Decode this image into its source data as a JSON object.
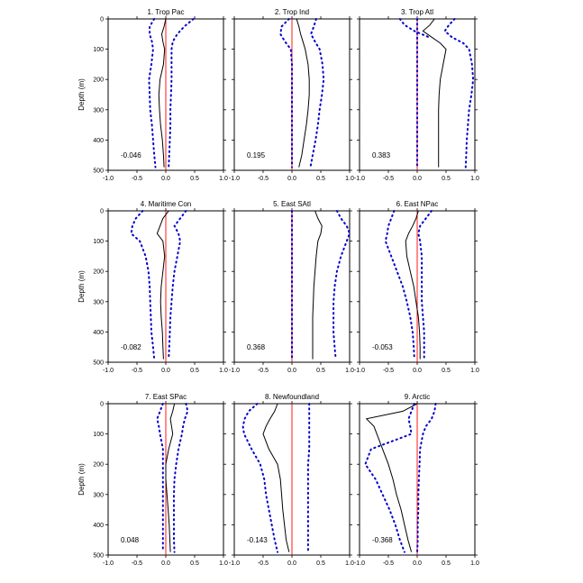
{
  "colors": {
    "mean": "#000000",
    "bounds": "#0000cc",
    "zero": "#ff0000",
    "axis": "#000000"
  },
  "shared_axes": {
    "ylabel": "Depth (m)",
    "xlim": [
      -1.0,
      1.0
    ],
    "ylim": [
      0,
      500
    ],
    "xticks": [
      "-1.0",
      "-0.5",
      "0.0",
      "0.5",
      "1.0"
    ],
    "yticks": [
      "0",
      "100",
      "200",
      "300",
      "400",
      "500"
    ]
  },
  "chart_data": [
    {
      "type": "line",
      "title": "1. Trop Pac",
      "value_label": "-0.046",
      "xlim": [
        -1,
        1
      ],
      "ylim": [
        0,
        500
      ],
      "grid": false,
      "depth": [
        0,
        25,
        50,
        75,
        100,
        150,
        200,
        250,
        300,
        350,
        400,
        450,
        490
      ],
      "series": [
        {
          "role": "mean",
          "values": [
            0.0,
            -0.03,
            -0.07,
            -0.05,
            -0.02,
            -0.04,
            -0.1,
            -0.12,
            -0.11,
            -0.09,
            -0.06,
            -0.04,
            -0.03
          ]
        },
        {
          "role": "lower",
          "values": [
            -0.2,
            -0.28,
            -0.28,
            -0.24,
            -0.22,
            -0.25,
            -0.29,
            -0.28,
            -0.27,
            -0.24,
            -0.22,
            -0.2,
            -0.18
          ]
        },
        {
          "role": "upper",
          "values": [
            0.48,
            0.32,
            0.2,
            0.12,
            0.1,
            0.1,
            0.1,
            0.09,
            0.08,
            0.08,
            0.07,
            0.06,
            0.05
          ]
        }
      ]
    },
    {
      "type": "line",
      "title": "2. Trop Ind",
      "value_label": "0.195",
      "xlim": [
        -1,
        1
      ],
      "ylim": [
        0,
        500
      ],
      "grid": false,
      "depth": [
        0,
        25,
        50,
        75,
        100,
        150,
        200,
        250,
        300,
        350,
        400,
        450,
        490
      ],
      "series": [
        {
          "role": "mean",
          "values": [
            0.08,
            0.12,
            0.15,
            0.19,
            0.23,
            0.28,
            0.3,
            0.3,
            0.28,
            0.25,
            0.21,
            0.17,
            0.12
          ]
        },
        {
          "role": "lower",
          "values": [
            -0.05,
            -0.18,
            -0.2,
            -0.12,
            -0.02,
            0.0,
            0.0,
            0.0,
            0.0,
            0.0,
            0.0,
            0.0,
            0.0
          ]
        },
        {
          "role": "upper",
          "values": [
            0.42,
            0.38,
            0.33,
            0.4,
            0.48,
            0.53,
            0.55,
            0.52,
            0.48,
            0.45,
            0.41,
            0.36,
            0.32
          ]
        }
      ]
    },
    {
      "type": "line",
      "title": "3. Trop Atl",
      "value_label": "0.383",
      "xlim": [
        -1,
        1
      ],
      "ylim": [
        0,
        500
      ],
      "grid": false,
      "depth": [
        0,
        20,
        40,
        60,
        80,
        100,
        150,
        200,
        250,
        300,
        350,
        400,
        450,
        490
      ],
      "series": [
        {
          "role": "mean",
          "values": [
            0.3,
            0.22,
            0.1,
            0.25,
            0.4,
            0.5,
            0.45,
            0.4,
            0.38,
            0.37,
            0.37,
            0.37,
            0.37,
            0.37
          ]
        },
        {
          "role": "lower",
          "values": [
            0.0,
            0.0,
            0.0,
            0.0,
            0.0,
            0.0,
            0.0,
            0.0,
            0.0,
            0.0,
            0.0,
            0.0,
            0.0,
            0.0
          ]
        },
        {
          "role": "upper",
          "values": [
            0.65,
            0.55,
            0.48,
            0.6,
            0.8,
            0.9,
            0.95,
            0.97,
            0.94,
            0.9,
            0.88,
            0.86,
            0.85,
            0.84
          ]
        },
        {
          "role": "lower_extra",
          "values": [
            -0.3,
            -0.22,
            -0.05,
            0.2,
            null,
            null,
            null,
            null,
            null,
            null,
            null,
            null,
            null,
            null
          ]
        }
      ]
    },
    {
      "type": "line",
      "title": "4. Maritime Con",
      "value_label": "-0.082",
      "xlim": [
        -1,
        1
      ],
      "ylim": [
        0,
        500
      ],
      "grid": false,
      "depth": [
        0,
        25,
        50,
        75,
        100,
        150,
        200,
        250,
        300,
        350,
        400,
        450,
        490
      ],
      "series": [
        {
          "role": "mean",
          "values": [
            0.05,
            -0.05,
            -0.1,
            -0.15,
            -0.05,
            -0.02,
            -0.05,
            -0.08,
            -0.09,
            -0.08,
            -0.06,
            -0.05,
            -0.04
          ]
        },
        {
          "role": "lower",
          "values": [
            -0.4,
            -0.52,
            -0.58,
            -0.6,
            -0.45,
            -0.35,
            -0.3,
            -0.28,
            -0.27,
            -0.26,
            -0.25,
            -0.22,
            -0.2
          ]
        },
        {
          "role": "upper",
          "values": [
            0.35,
            0.25,
            0.15,
            0.22,
            0.25,
            0.2,
            0.15,
            0.12,
            0.1,
            0.08,
            0.07,
            0.06,
            0.05
          ]
        }
      ]
    },
    {
      "type": "line",
      "title": "5. East SAtl",
      "value_label": "0.368",
      "xlim": [
        -1,
        1
      ],
      "ylim": [
        0,
        500
      ],
      "grid": false,
      "depth": [
        0,
        25,
        50,
        75,
        100,
        150,
        200,
        250,
        300,
        350,
        400,
        450,
        490
      ],
      "series": [
        {
          "role": "mean",
          "values": [
            0.4,
            0.45,
            0.52,
            0.5,
            0.45,
            0.42,
            0.4,
            0.38,
            0.37,
            0.36,
            0.36,
            0.36,
            0.36
          ]
        },
        {
          "role": "lower",
          "values": [
            0.0,
            0.0,
            0.0,
            0.0,
            0.0,
            0.0,
            0.0,
            0.0,
            0.0,
            0.0,
            0.0,
            0.0,
            0.0
          ]
        },
        {
          "role": "upper",
          "values": [
            0.78,
            0.85,
            0.95,
            1.0,
            0.95,
            0.85,
            0.78,
            0.74,
            0.72,
            0.72,
            0.72,
            0.74,
            0.76
          ]
        }
      ]
    },
    {
      "type": "line",
      "title": "6. East NPac",
      "value_label": "-0.053",
      "xlim": [
        -1,
        1
      ],
      "ylim": [
        0,
        500
      ],
      "grid": false,
      "depth": [
        0,
        25,
        50,
        75,
        100,
        150,
        200,
        250,
        300,
        350,
        400,
        450,
        490
      ],
      "series": [
        {
          "role": "mean",
          "values": [
            0.02,
            -0.02,
            -0.08,
            -0.15,
            -0.2,
            -0.18,
            -0.12,
            -0.06,
            -0.02,
            0.02,
            0.04,
            0.05,
            0.05
          ]
        },
        {
          "role": "lower",
          "values": [
            -0.4,
            -0.45,
            -0.5,
            -0.52,
            -0.55,
            -0.45,
            -0.35,
            -0.25,
            -0.18,
            -0.12,
            -0.08,
            -0.06,
            -0.05
          ]
        },
        {
          "role": "upper",
          "values": [
            0.25,
            0.15,
            0.05,
            0.02,
            0.05,
            0.08,
            0.08,
            0.08,
            0.08,
            0.1,
            0.12,
            0.12,
            0.12
          ]
        }
      ]
    },
    {
      "type": "line",
      "title": "7. East SPac",
      "value_label": "0.048",
      "xlim": [
        -1,
        1
      ],
      "ylim": [
        0,
        500
      ],
      "grid": false,
      "depth": [
        0,
        25,
        50,
        75,
        100,
        150,
        200,
        250,
        300,
        350,
        400,
        450,
        490
      ],
      "series": [
        {
          "role": "mean",
          "values": [
            0.15,
            0.12,
            0.08,
            0.1,
            0.12,
            0.05,
            0.0,
            0.0,
            0.02,
            0.04,
            0.06,
            0.07,
            0.08
          ]
        },
        {
          "role": "lower",
          "values": [
            -0.05,
            -0.1,
            -0.15,
            -0.12,
            -0.1,
            -0.05,
            -0.05,
            -0.05,
            -0.05,
            -0.05,
            -0.05,
            -0.05,
            -0.05
          ]
        },
        {
          "role": "upper",
          "values": [
            0.35,
            0.38,
            0.33,
            0.3,
            0.28,
            0.22,
            0.18,
            0.15,
            0.14,
            0.14,
            0.14,
            0.14,
            0.15
          ]
        }
      ]
    },
    {
      "type": "line",
      "title": "8. Newfoundland",
      "value_label": "-0.143",
      "xlim": [
        -1,
        1
      ],
      "ylim": [
        0,
        500
      ],
      "grid": false,
      "depth": [
        0,
        25,
        50,
        75,
        100,
        150,
        200,
        250,
        300,
        350,
        400,
        450,
        490
      ],
      "series": [
        {
          "role": "mean",
          "values": [
            -0.25,
            -0.3,
            -0.38,
            -0.45,
            -0.5,
            -0.4,
            -0.25,
            -0.2,
            -0.18,
            -0.16,
            -0.13,
            -0.1,
            -0.05
          ]
        },
        {
          "role": "lower",
          "values": [
            -0.6,
            -0.75,
            -0.82,
            -0.85,
            -0.83,
            -0.7,
            -0.55,
            -0.48,
            -0.45,
            -0.4,
            -0.35,
            -0.3,
            -0.25
          ]
        },
        {
          "role": "upper",
          "values": [
            0.3,
            0.3,
            0.3,
            0.3,
            0.3,
            0.3,
            0.28,
            0.28,
            0.28,
            0.28,
            0.28,
            0.28,
            0.28
          ]
        }
      ]
    },
    {
      "type": "line",
      "title": "9. Arctic",
      "value_label": "-0.368",
      "xlim": [
        -1,
        1
      ],
      "ylim": [
        0,
        500
      ],
      "grid": false,
      "depth": [
        0,
        25,
        50,
        75,
        100,
        150,
        200,
        250,
        300,
        350,
        400,
        450,
        490
      ],
      "series": [
        {
          "role": "mean",
          "values": [
            0.0,
            -0.25,
            -0.88,
            -0.75,
            -0.7,
            -0.6,
            -0.5,
            -0.42,
            -0.36,
            -0.28,
            -0.22,
            -0.16,
            -0.1
          ]
        },
        {
          "role": "lower",
          "values": [
            -0.05,
            -0.1,
            -0.15,
            -0.12,
            -0.1,
            -0.8,
            -0.9,
            -0.72,
            -0.6,
            -0.48,
            -0.38,
            -0.3,
            -0.22
          ]
        },
        {
          "role": "upper",
          "values": [
            0.32,
            0.3,
            0.25,
            0.15,
            0.1,
            0.05,
            0.04,
            0.03,
            0.02,
            0.02,
            0.01,
            0.01,
            0.0
          ]
        }
      ]
    }
  ]
}
